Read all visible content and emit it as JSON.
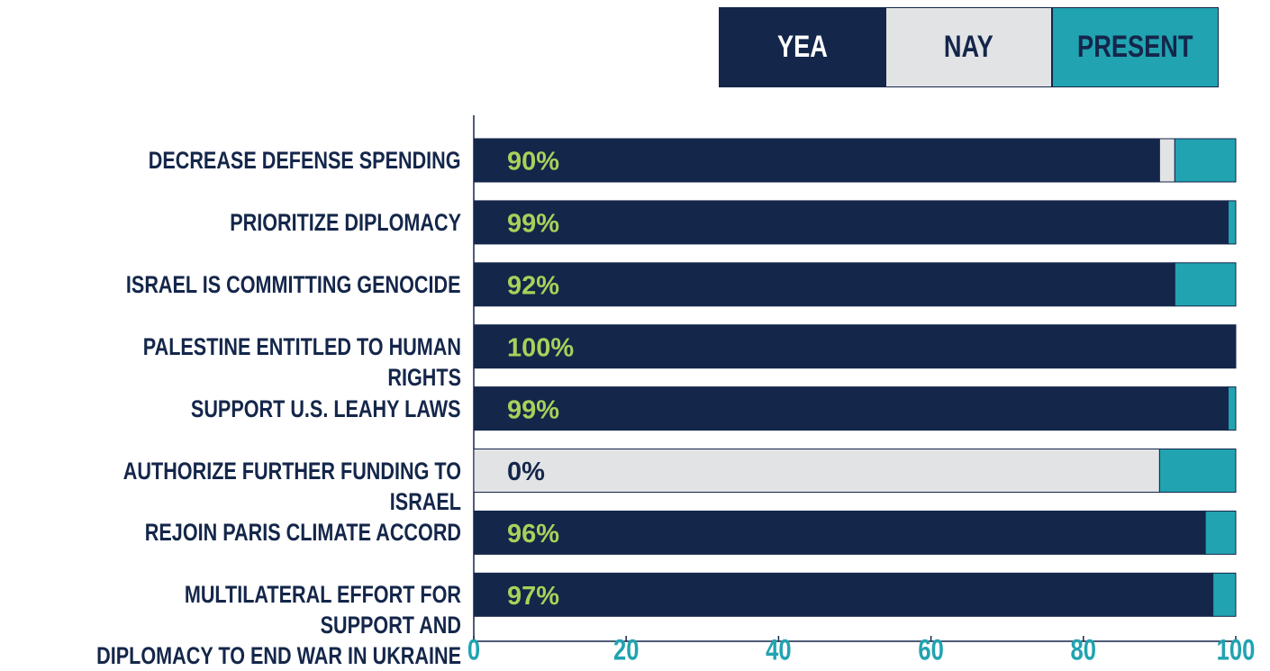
{
  "chart_data": {
    "type": "stacked-bar-horizontal",
    "categories": [
      "DECREASE DEFENSE SPENDING",
      "PRIORITIZE DIPLOMACY",
      "ISRAEL IS COMMITTING GENOCIDE",
      "PALESTINE ENTITLED TO HUMAN RIGHTS",
      "SUPPORT U.S. LEAHY LAWS",
      "AUTHORIZE FURTHER FUNDING TO ISRAEL",
      "REJOIN PARIS CLIMATE ACCORD",
      "MULTILATERAL EFFORT FOR SUPPORT AND\nDIPLOMACY TO END WAR IN UKRAINE"
    ],
    "series": [
      {
        "name": "YEA",
        "color": "#14264a",
        "values": [
          90,
          99,
          92,
          100,
          99,
          0,
          96,
          97
        ],
        "value_labels": [
          "90%",
          "99%",
          "92%",
          "100%",
          "99%",
          "0%",
          "96%",
          "97%"
        ]
      },
      {
        "name": "NAY",
        "color": "#e2e3e5",
        "values": [
          2,
          0,
          0,
          0,
          0,
          90,
          0,
          0
        ]
      },
      {
        "name": "PRESENT",
        "color": "#21a3b1",
        "values": [
          8,
          1,
          8,
          0,
          1,
          10,
          4,
          3
        ]
      }
    ],
    "xlim": [
      0,
      100
    ],
    "xticks": [
      0,
      20,
      40,
      60,
      80,
      100
    ],
    "grid": false,
    "legend": "top-right"
  }
}
